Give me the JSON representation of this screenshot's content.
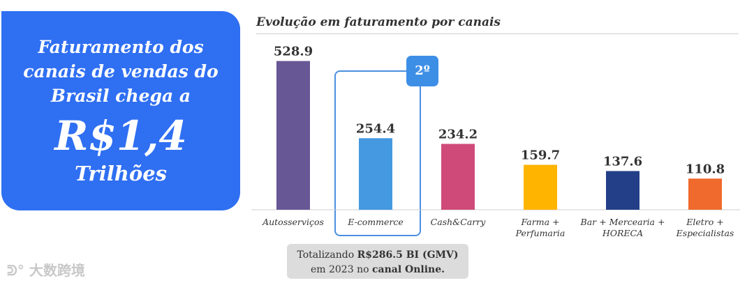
{
  "headline": {
    "line1": "Faturamento dos",
    "line2": "canais de vendas do",
    "line3": "Brasil chega a",
    "amount": "R$1,4",
    "unit": "Trilhões"
  },
  "chart_data": {
    "type": "bar",
    "title": "Evolução em faturamento por canais",
    "categories": [
      "Autosserviços",
      "E-commerce",
      "Cash&Carry",
      "Farma + Perfumaria",
      "Bar + Mercearia + HORECA",
      "Eletro + Especialistas"
    ],
    "category_lines": [
      [
        "Autosserviços"
      ],
      [
        "E-commerce"
      ],
      [
        "Cash&Carry"
      ],
      [
        "Farma +",
        "Perfumaria"
      ],
      [
        "Bar + Mercearia +",
        "HORECA"
      ],
      [
        "Eletro +",
        "Especialistas"
      ]
    ],
    "values": [
      528.9,
      254.4,
      234.2,
      159.7,
      137.6,
      110.8
    ],
    "value_labels": [
      "528.9",
      "254.4",
      "234.2",
      "159.7",
      "137.6",
      "110.8"
    ],
    "colors": [
      "#675795",
      "#4499e0",
      "#cf4a79",
      "#ffb400",
      "#233f88",
      "#f06a2d"
    ],
    "xlabel": "",
    "ylabel": "",
    "ylim": [
      0,
      560
    ],
    "highlight_index": 1
  },
  "badge": {
    "label": "2º"
  },
  "total_box": {
    "line1_plain": "Totalizando ",
    "line1_bold": "R$286.5 BI (GMV)",
    "line2_plain": "em 2023 no ",
    "line2_bold": "canal Online."
  },
  "watermark": {
    "text": "大数跨境"
  },
  "colors": {
    "panel": "#2f6ff2",
    "axis": "#cccccc",
    "highlight": "#4a8fe0"
  }
}
